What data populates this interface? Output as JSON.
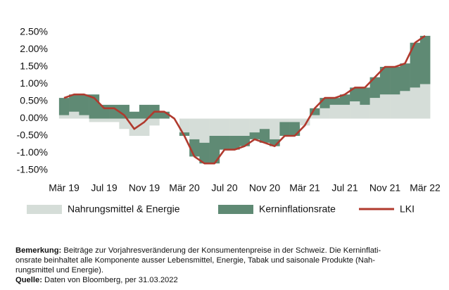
{
  "chart_data": {
    "type": "stacked-bar-line",
    "categories": [
      "Mär 19",
      null,
      null,
      null,
      "Jul 19",
      null,
      null,
      null,
      "Nov 19",
      null,
      null,
      null,
      "Mär 20",
      null,
      null,
      null,
      "Jul 20",
      null,
      null,
      null,
      "Nov 20",
      null,
      null,
      null,
      "Mär 21",
      null,
      null,
      null,
      "Jul 21",
      null,
      null,
      null,
      "Nov 21",
      null,
      null,
      null,
      "Mär 22"
    ],
    "series": [
      {
        "name": "Nahrungsmittel & Energie",
        "color": "#d5ddd8",
        "kind": "bar",
        "values": [
          0.1,
          0.2,
          0.1,
          -0.1,
          -0.1,
          -0.1,
          -0.3,
          -0.5,
          -0.5,
          -0.2,
          0.0,
          0.0,
          -0.4,
          -0.6,
          -0.7,
          -0.5,
          -0.5,
          -0.5,
          -0.5,
          -0.4,
          -0.3,
          -0.6,
          -0.1,
          -0.1,
          -0.2,
          0.1,
          0.3,
          0.4,
          0.4,
          0.5,
          0.4,
          0.6,
          0.7,
          0.7,
          0.8,
          0.9,
          1.0
        ]
      },
      {
        "name": "Kerninflationsrate",
        "color": "#5f8a74",
        "kind": "bar",
        "values": [
          0.5,
          0.5,
          0.6,
          0.7,
          0.4,
          0.4,
          0.4,
          0.2,
          0.4,
          0.4,
          0.2,
          0.0,
          -0.1,
          -0.5,
          -0.6,
          -0.8,
          -0.4,
          -0.4,
          -0.3,
          -0.2,
          -0.4,
          -0.2,
          -0.4,
          -0.4,
          0.0,
          0.2,
          0.3,
          0.2,
          0.3,
          0.4,
          0.5,
          0.6,
          0.8,
          0.8,
          0.8,
          1.3,
          1.4
        ]
      },
      {
        "name": "LKI",
        "color": "#b03a2e",
        "kind": "line",
        "values": [
          0.6,
          0.7,
          0.7,
          0.6,
          0.3,
          0.3,
          0.1,
          -0.3,
          -0.1,
          0.2,
          0.2,
          0.0,
          -0.5,
          -1.1,
          -1.3,
          -1.3,
          -0.9,
          -0.9,
          -0.8,
          -0.6,
          -0.7,
          -0.8,
          -0.5,
          -0.5,
          -0.2,
          0.3,
          0.6,
          0.6,
          0.7,
          0.9,
          0.9,
          1.2,
          1.5,
          1.5,
          1.6,
          2.2,
          2.4
        ]
      }
    ],
    "ylim": [
      -1.5,
      2.5
    ],
    "yticks": [
      {
        "value": 2.5,
        "label": "2.50%"
      },
      {
        "value": 2.0,
        "label": "2.00%"
      },
      {
        "value": 1.5,
        "label": "1.50%"
      },
      {
        "value": 1.0,
        "label": "1.00%"
      },
      {
        "value": 0.5,
        "label": "0.50%"
      },
      {
        "value": 0.0,
        "label": "0.00%"
      },
      {
        "value": -0.5,
        "label": "-0.50%"
      },
      {
        "value": -1.0,
        "label": "-1.00%"
      },
      {
        "value": -1.5,
        "label": "-1.50%"
      }
    ],
    "legend": "bottom"
  },
  "note": {
    "label": "Bemerkung:",
    "lines": [
      "Beiträge zur Vorjahresveränderung der Konsumentenpreise in der Schweiz. Die Kerninflati-",
      "onsrate beinhaltet alle Komponente ausser Lebensmittel, Energie, Tabak und saisonale Produkte (Nah-",
      "rungsmittel und Energie)."
    ]
  },
  "source": {
    "label": "Quelle:",
    "text": "Daten von Bloomberg, per 31.03.2022"
  }
}
